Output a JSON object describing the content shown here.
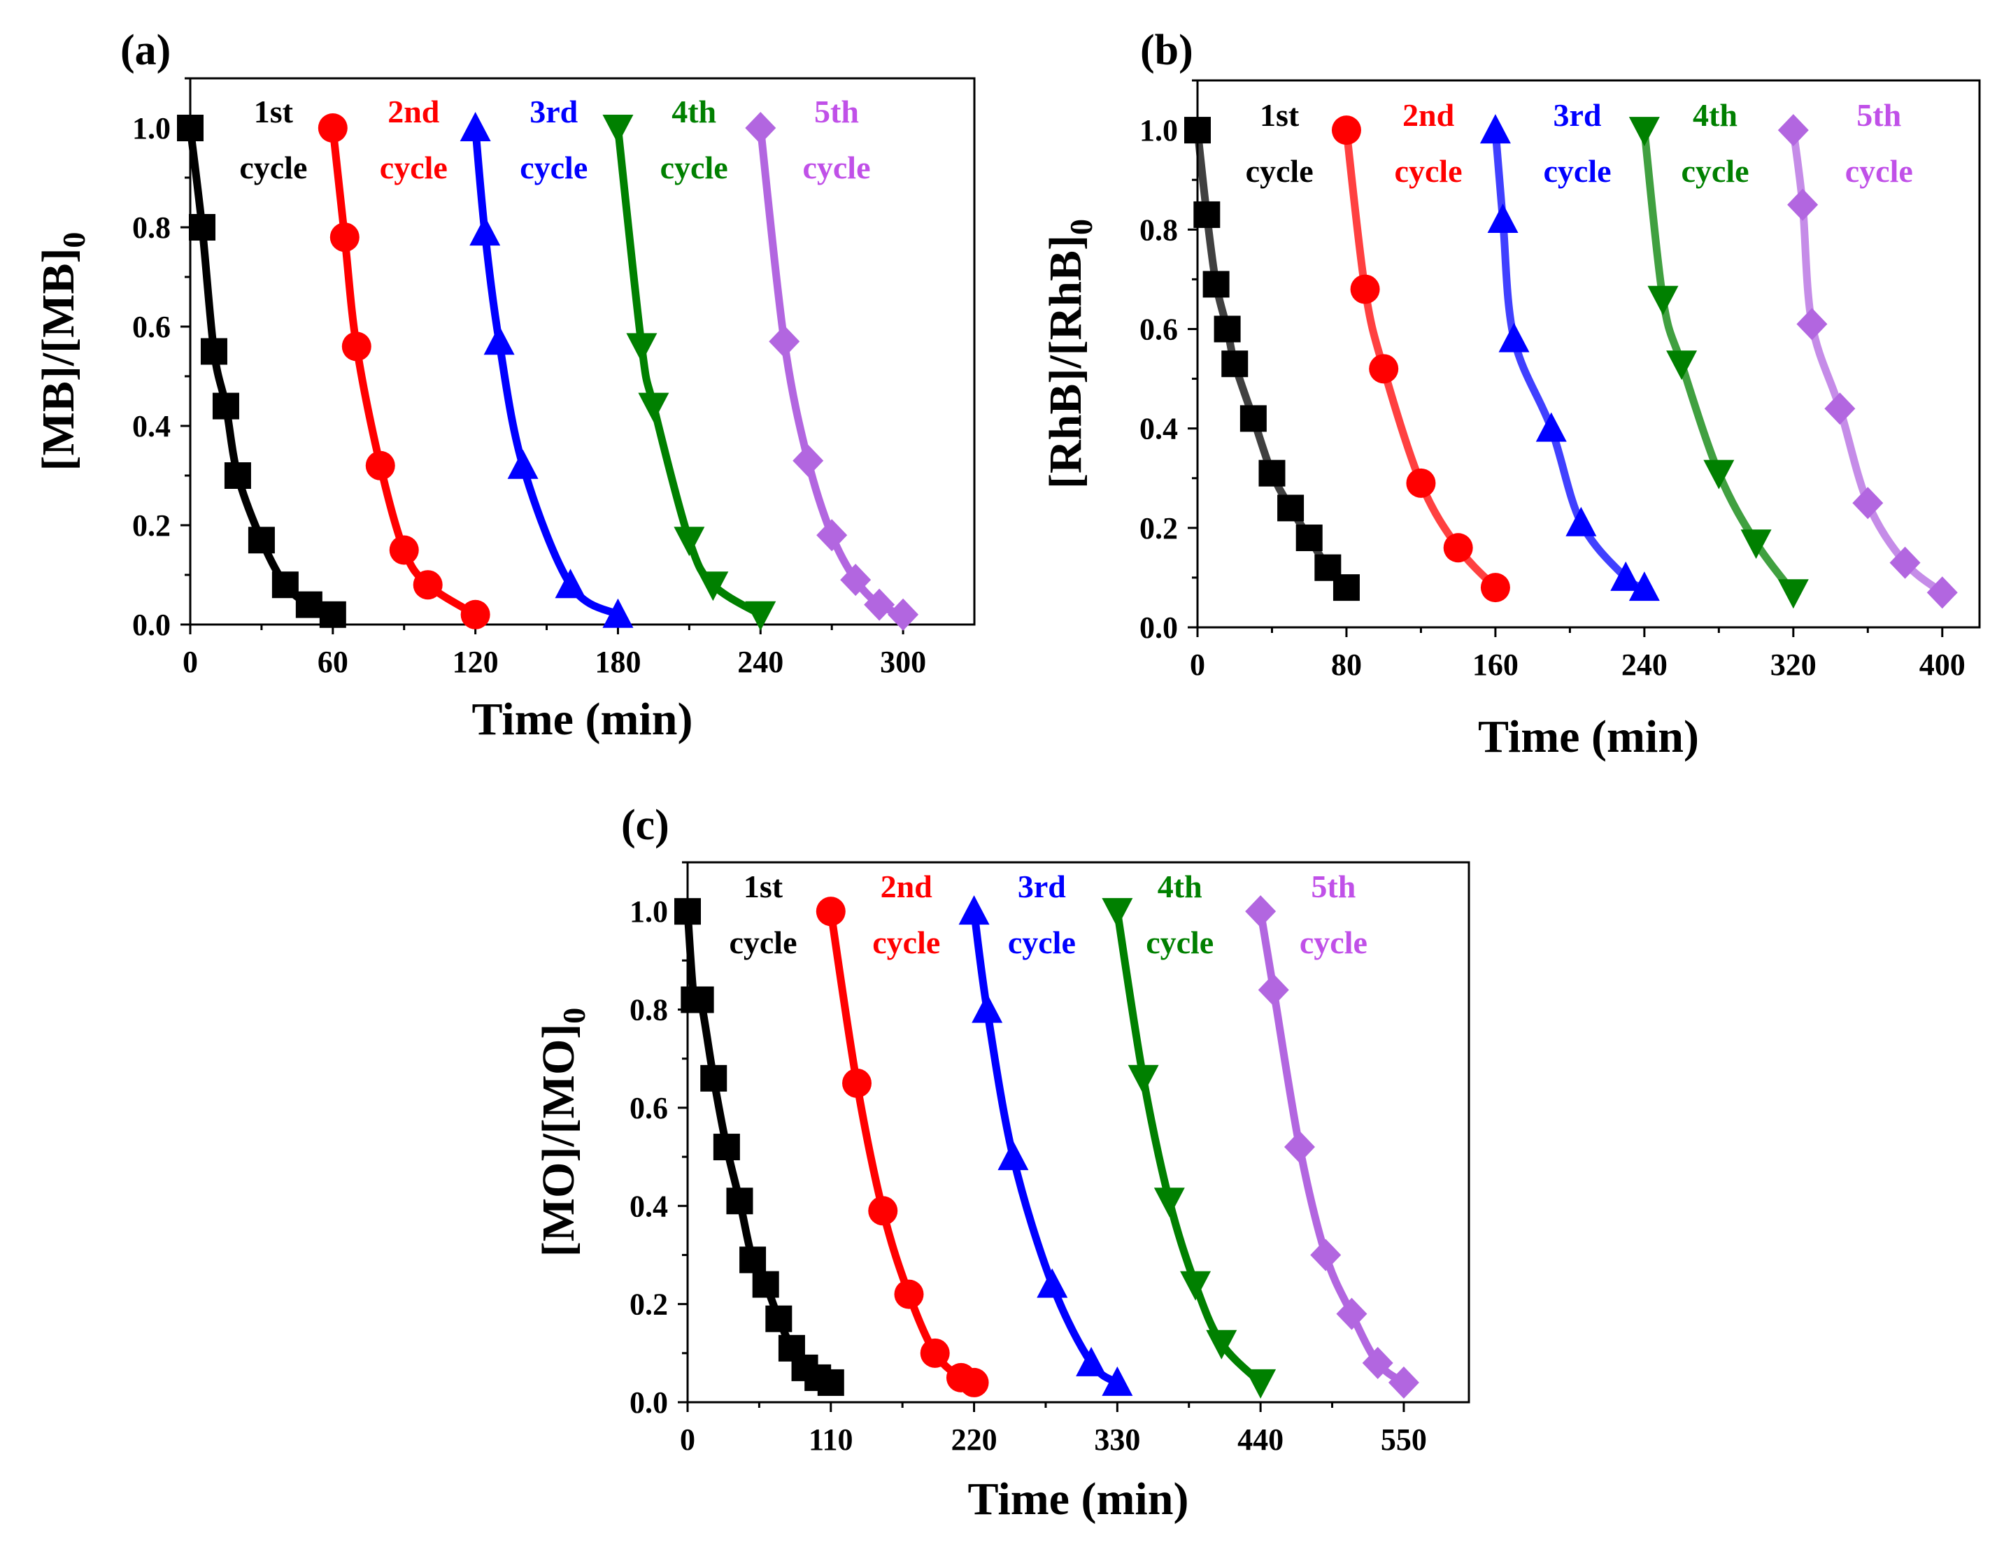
{
  "figure": {
    "background": "#ffffff"
  },
  "series_styles": [
    {
      "name": "1st cycle",
      "color": "#000000",
      "marker": "square"
    },
    {
      "name": "2nd cycle",
      "color": "#ff0000",
      "marker": "circle"
    },
    {
      "name": "3rd cycle",
      "color": "#0000ff",
      "marker": "triangle-up"
    },
    {
      "name": "4th cycle",
      "color": "#008000",
      "marker": "triangle-down"
    },
    {
      "name": "5th cycle",
      "color": "#b266e0",
      "marker": "diamond"
    }
  ],
  "chart_data": [
    {
      "panel": "(a)",
      "type": "line",
      "xlabel": "Time (min)",
      "ylabel_main": "[MB]/[MB]",
      "ylabel_sub": "0",
      "xlim": [
        0,
        330
      ],
      "ylim": [
        0,
        1.1
      ],
      "xticks": [
        0,
        60,
        120,
        180,
        240,
        300
      ],
      "yticks": [
        "0.0",
        "0.2",
        "0.4",
        "0.6",
        "0.8",
        "1.0"
      ],
      "cycle_labels": [
        {
          "num": "1st",
          "word": "cycle",
          "color": "#000000",
          "at_x": 35
        },
        {
          "num": "2nd",
          "word": "cycle",
          "color": "#ff0000",
          "at_x": 94
        },
        {
          "num": "3rd",
          "word": "cycle",
          "color": "#0000ff",
          "at_x": 153
        },
        {
          "num": "4th",
          "word": "cycle",
          "color": "#008000",
          "at_x": 212
        },
        {
          "num": "5th",
          "word": "cycle",
          "color": "#c050e8",
          "at_x": 272
        }
      ],
      "series": [
        {
          "name": "1st cycle",
          "x": [
            0,
            5,
            10,
            15,
            20,
            30,
            40,
            50,
            60
          ],
          "y": [
            1.0,
            0.8,
            0.55,
            0.44,
            0.3,
            0.17,
            0.08,
            0.04,
            0.02
          ]
        },
        {
          "name": "2nd cycle",
          "x": [
            60,
            65,
            70,
            80,
            90,
            100,
            120
          ],
          "y": [
            1.0,
            0.78,
            0.56,
            0.32,
            0.15,
            0.08,
            0.02
          ]
        },
        {
          "name": "3rd cycle",
          "x": [
            120,
            124,
            130,
            140,
            160,
            180
          ],
          "y": [
            1.0,
            0.79,
            0.57,
            0.32,
            0.08,
            0.02
          ]
        },
        {
          "name": "4th cycle",
          "x": [
            180,
            190,
            195,
            210,
            220,
            240
          ],
          "y": [
            1.0,
            0.56,
            0.44,
            0.17,
            0.08,
            0.02
          ]
        },
        {
          "name": "5th cycle",
          "x": [
            240,
            250,
            260,
            270,
            280,
            290,
            300
          ],
          "y": [
            1.0,
            0.57,
            0.33,
            0.18,
            0.09,
            0.04,
            0.02
          ]
        }
      ]
    },
    {
      "panel": "(b)",
      "type": "line",
      "xlabel": "Time (min)",
      "ylabel_main": "[RhB]/[RhB]",
      "ylabel_sub": "0",
      "xlim": [
        0,
        420
      ],
      "ylim": [
        0,
        1.1
      ],
      "xticks": [
        0,
        80,
        160,
        240,
        320,
        400
      ],
      "yticks": [
        "0.0",
        "0.2",
        "0.4",
        "0.6",
        "0.8",
        "1.0"
      ],
      "cycle_labels": [
        {
          "num": "1st",
          "word": "cycle",
          "color": "#000000",
          "at_x": 44
        },
        {
          "num": "2nd",
          "word": "cycle",
          "color": "#ff0000",
          "at_x": 124
        },
        {
          "num": "3rd",
          "word": "cycle",
          "color": "#0000ff",
          "at_x": 204
        },
        {
          "num": "4th",
          "word": "cycle",
          "color": "#008000",
          "at_x": 278
        },
        {
          "num": "5th",
          "word": "cycle",
          "color": "#c050e8",
          "at_x": 366
        }
      ],
      "series": [
        {
          "name": "1st cycle",
          "x": [
            0,
            5,
            10,
            16,
            20,
            30,
            40,
            50,
            60,
            70,
            80
          ],
          "y": [
            1.0,
            0.83,
            0.69,
            0.6,
            0.53,
            0.42,
            0.31,
            0.24,
            0.18,
            0.12,
            0.08
          ]
        },
        {
          "name": "2nd cycle",
          "x": [
            80,
            90,
            100,
            120,
            140,
            160
          ],
          "y": [
            1.0,
            0.68,
            0.52,
            0.29,
            0.16,
            0.08
          ]
        },
        {
          "name": "3rd cycle",
          "x": [
            160,
            164,
            170,
            190,
            206,
            230,
            240
          ],
          "y": [
            1.0,
            0.82,
            0.58,
            0.4,
            0.21,
            0.1,
            0.08
          ]
        },
        {
          "name": "4th cycle",
          "x": [
            240,
            250,
            260,
            280,
            300,
            320
          ],
          "y": [
            1.0,
            0.66,
            0.53,
            0.31,
            0.17,
            0.07
          ]
        },
        {
          "name": "5th cycle",
          "x": [
            320,
            325,
            330,
            345,
            360,
            380,
            400
          ],
          "y": [
            1.0,
            0.85,
            0.61,
            0.44,
            0.25,
            0.13,
            0.07
          ]
        }
      ]
    },
    {
      "panel": "(c)",
      "type": "line",
      "xlabel": "Time (min)",
      "ylabel_main": "[MO]/[MO]",
      "ylabel_sub": "0",
      "xlim": [
        0,
        600
      ],
      "ylim": [
        0,
        1.1
      ],
      "xticks": [
        0,
        110,
        220,
        330,
        440,
        550
      ],
      "yticks": [
        "0.0",
        "0.2",
        "0.4",
        "0.6",
        "0.8",
        "1.0"
      ],
      "cycle_labels": [
        {
          "num": "1st",
          "word": "cycle",
          "color": "#000000",
          "at_x": 58
        },
        {
          "num": "2nd",
          "word": "cycle",
          "color": "#ff0000",
          "at_x": 168
        },
        {
          "num": "3rd",
          "word": "cycle",
          "color": "#0000ff",
          "at_x": 272
        },
        {
          "num": "4th",
          "word": "cycle",
          "color": "#008000",
          "at_x": 378
        },
        {
          "num": "5th",
          "word": "cycle",
          "color": "#c050e8",
          "at_x": 496
        }
      ],
      "series": [
        {
          "name": "1st cycle",
          "x": [
            0,
            5,
            10,
            20,
            30,
            40,
            50,
            60,
            70,
            80,
            90,
            100,
            110
          ],
          "y": [
            1.0,
            0.82,
            0.82,
            0.66,
            0.52,
            0.41,
            0.29,
            0.24,
            0.17,
            0.11,
            0.07,
            0.05,
            0.04
          ]
        },
        {
          "name": "2nd cycle",
          "x": [
            110,
            130,
            150,
            170,
            190,
            210,
            220
          ],
          "y": [
            1.0,
            0.65,
            0.39,
            0.22,
            0.1,
            0.05,
            0.04
          ]
        },
        {
          "name": "3rd cycle",
          "x": [
            220,
            230,
            250,
            280,
            310,
            330
          ],
          "y": [
            1.0,
            0.8,
            0.5,
            0.24,
            0.08,
            0.04
          ]
        },
        {
          "name": "4th cycle",
          "x": [
            330,
            350,
            370,
            390,
            410,
            440
          ],
          "y": [
            1.0,
            0.66,
            0.41,
            0.24,
            0.12,
            0.04
          ]
        },
        {
          "name": "5th cycle",
          "x": [
            440,
            450,
            470,
            490,
            510,
            530,
            550
          ],
          "y": [
            1.0,
            0.84,
            0.52,
            0.3,
            0.18,
            0.08,
            0.04
          ]
        }
      ]
    }
  ]
}
